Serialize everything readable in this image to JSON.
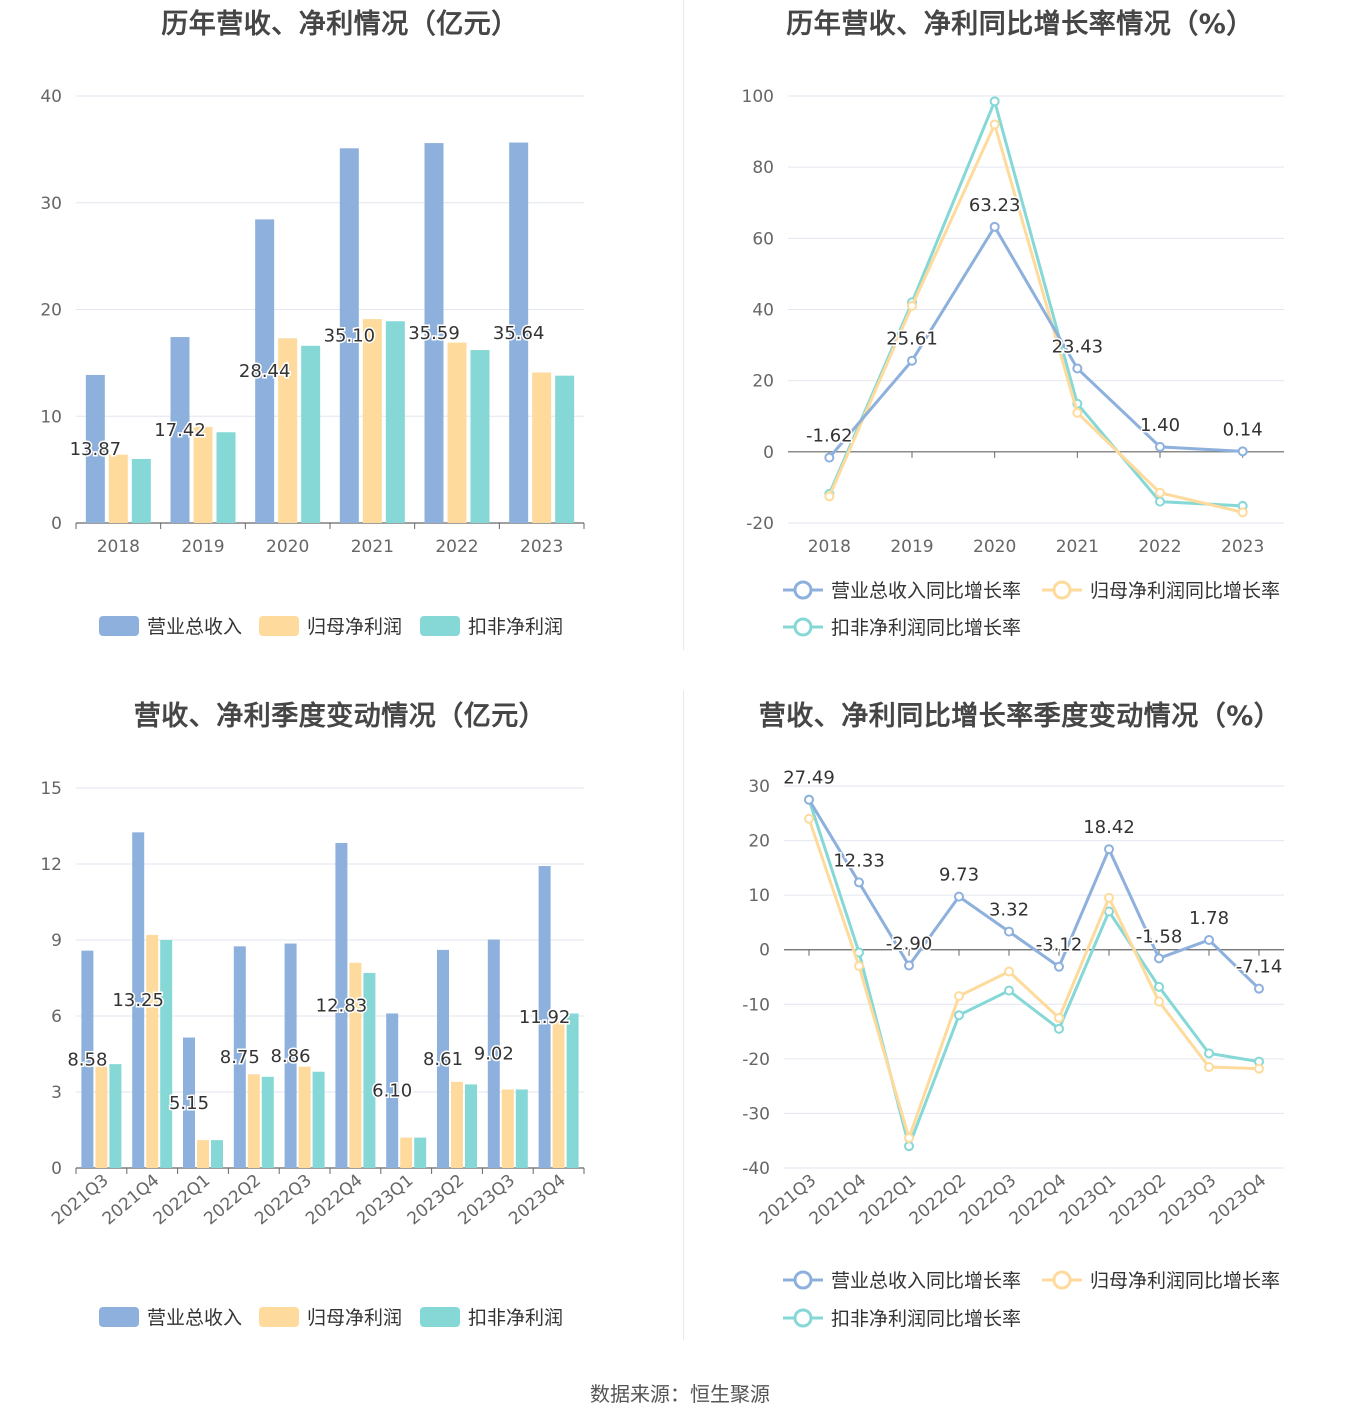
{
  "source": "数据来源：恒生聚源",
  "colors": {
    "revenue": "#8eb0dd",
    "netprofit": "#fedb9c",
    "deducted": "#85d8d6",
    "axis": "#666666",
    "grid": "#e3e6f0"
  },
  "legend_bar": [
    "营业总收入",
    "归母净利润",
    "扣非净利润"
  ],
  "legend_line": [
    "营业总收入同比增长率",
    "归母净利润同比增长率",
    "扣非净利润同比增长率"
  ],
  "chart_data": [
    {
      "id": "annual-amount",
      "type": "bar",
      "title": "历年营收、净利情况（亿元）",
      "categories": [
        "2018",
        "2019",
        "2020",
        "2021",
        "2022",
        "2023"
      ],
      "ylim": [
        0,
        40
      ],
      "yticks": [
        0,
        10,
        20,
        30,
        40
      ],
      "series": [
        {
          "name": "营业总收入",
          "values": [
            13.87,
            17.42,
            28.44,
            35.1,
            35.59,
            35.64
          ],
          "labels": [
            "13.87",
            "17.42",
            "28.44",
            "35.10",
            "35.59",
            "35.64"
          ]
        },
        {
          "name": "归母净利润",
          "values": [
            6.4,
            9.0,
            17.3,
            19.1,
            16.9,
            14.1
          ]
        },
        {
          "name": "扣非净利润",
          "values": [
            6.0,
            8.5,
            16.6,
            18.9,
            16.2,
            13.8
          ]
        }
      ],
      "legend": "bottom",
      "grid": true
    },
    {
      "id": "annual-growth",
      "type": "line",
      "title": "历年营收、净利同比增长率情况（%）",
      "categories": [
        "2018",
        "2019",
        "2020",
        "2021",
        "2022",
        "2023"
      ],
      "ylim": [
        -20,
        100
      ],
      "yticks": [
        -20,
        0,
        20,
        40,
        60,
        80,
        100
      ],
      "series": [
        {
          "name": "营业总收入同比增长率",
          "values": [
            -1.62,
            25.61,
            63.23,
            23.43,
            1.4,
            0.14
          ],
          "labels": [
            "-1.62",
            "25.61",
            "63.23",
            "23.43",
            "1.40",
            "0.14"
          ]
        },
        {
          "name": "归母净利润同比增长率",
          "values": [
            -12.5,
            41,
            92,
            11,
            -11.5,
            -17
          ]
        },
        {
          "name": "扣非净利润同比增长率",
          "values": [
            -11.8,
            42,
            98.5,
            13.5,
            -14,
            -15.2
          ]
        }
      ],
      "legend": "bottom",
      "grid": true
    },
    {
      "id": "quarter-amount",
      "type": "bar",
      "title": "营收、净利季度变动情况（亿元）",
      "categories": [
        "2021Q3",
        "2021Q4",
        "2022Q1",
        "2022Q2",
        "2022Q3",
        "2022Q4",
        "2023Q1",
        "2023Q2",
        "2023Q3",
        "2023Q4"
      ],
      "ylim": [
        0,
        15
      ],
      "yticks": [
        0,
        3,
        6,
        9,
        12,
        15
      ],
      "series": [
        {
          "name": "营业总收入",
          "values": [
            8.58,
            13.25,
            5.15,
            8.75,
            8.86,
            12.83,
            6.1,
            8.61,
            9.02,
            11.92
          ],
          "labels": [
            "8.58",
            "13.25",
            "5.15",
            "8.75",
            "8.86",
            "12.83",
            "6.10",
            "8.61",
            "9.02",
            "11.92"
          ]
        },
        {
          "name": "归母净利润",
          "values": [
            4.0,
            9.2,
            1.1,
            3.7,
            4.0,
            8.1,
            1.2,
            3.4,
            3.1,
            5.8
          ]
        },
        {
          "name": "扣非净利润",
          "values": [
            4.1,
            9.0,
            1.1,
            3.6,
            3.8,
            7.7,
            1.2,
            3.3,
            3.1,
            6.1
          ]
        }
      ],
      "legend": "bottom",
      "grid": true
    },
    {
      "id": "quarter-growth",
      "type": "line",
      "title": "营收、净利同比增长率季度变动情况（%）",
      "categories": [
        "2021Q3",
        "2021Q4",
        "2022Q1",
        "2022Q2",
        "2022Q3",
        "2022Q4",
        "2023Q1",
        "2023Q2",
        "2023Q3",
        "2023Q4"
      ],
      "ylim": [
        -40,
        30
      ],
      "yticks": [
        -40,
        -30,
        -20,
        -10,
        0,
        10,
        20,
        30
      ],
      "series": [
        {
          "name": "营业总收入同比增长率",
          "values": [
            27.49,
            12.33,
            -2.9,
            9.73,
            3.32,
            -3.12,
            18.42,
            -1.58,
            1.78,
            -7.14
          ],
          "labels": [
            "27.49",
            "12.33",
            "-2.90",
            "9.73",
            "3.32",
            "-3.12",
            "18.42",
            "-1.58",
            "1.78",
            "-7.14"
          ]
        },
        {
          "name": "归母净利润同比增长率",
          "values": [
            24,
            -3,
            -34.5,
            -8.5,
            -4,
            -12.5,
            9.5,
            -9.5,
            -21.5,
            -21.8
          ]
        },
        {
          "name": "扣非净利润同比增长率",
          "values": [
            27.5,
            -0.5,
            -36,
            -12,
            -7.5,
            -14.5,
            7,
            -6.8,
            -19,
            -20.5
          ]
        }
      ],
      "legend": "bottom",
      "grid": true
    }
  ]
}
